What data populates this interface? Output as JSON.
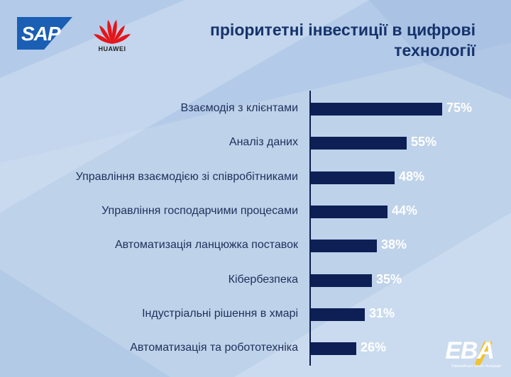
{
  "logos": {
    "sap": "SAP",
    "huawei": "HUAWEI",
    "eba": "EBA",
    "eba_sub": "Європейська Бізнес Асоціація"
  },
  "colors": {
    "background": "#bed2ea",
    "bar": "#0d1f54",
    "title": "#16336b",
    "sap_blue": "#1a5fb4",
    "huawei_red": "#e3161b",
    "eba_yellow": "#f2c230"
  },
  "chart_data": {
    "type": "bar",
    "orientation": "horizontal",
    "title": "пріоритетні інвестиції в цифрові технології",
    "title_lines": [
      "пріоритетні інвестиції в цифрові",
      "технології"
    ],
    "categories": [
      "Взаємодія з клієнтами",
      "Аналіз даних",
      "Управління взаємодією зі співробітниками",
      "Управління господарчими процесами",
      "Автоматизація ланцюжка поставок",
      "Кібербезпека",
      "Індустріальні рішення в хмарі",
      "Автоматизація та робототехніка"
    ],
    "values": [
      75,
      55,
      48,
      44,
      38,
      35,
      31,
      26
    ],
    "value_labels": [
      "75%",
      "55%",
      "48%",
      "44%",
      "38%",
      "35%",
      "31%",
      "26%"
    ],
    "xlim": [
      0,
      100
    ],
    "grid": false,
    "legend": "none"
  }
}
